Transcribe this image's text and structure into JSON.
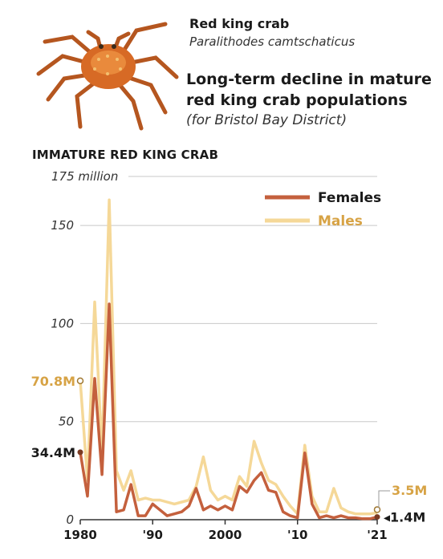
{
  "header": {
    "species_name": "Red king crab",
    "species_latin": "Paralithodes camtschaticus",
    "headline_line1": "Long-term decline in mature",
    "headline_line2": "red king crab populations",
    "subhead": "(for Bristol Bay District)"
  },
  "illustration": {
    "icon": "red-king-crab-icon"
  },
  "colors": {
    "females": "#c4603d",
    "males": "#f5d898",
    "grid": "#c8c8c8",
    "axis": "#333333",
    "male_label": "#d7a345"
  },
  "chart_data": {
    "type": "line",
    "title": "IMMATURE RED KING CRAB",
    "ylabel": "",
    "xlabel": "",
    "ylim": [
      0,
      175
    ],
    "xlim": [
      1980,
      2021
    ],
    "grid": true,
    "legend": "top-right",
    "y_ticks": [
      {
        "value": 0,
        "label": "0"
      },
      {
        "value": 50,
        "label": "50"
      },
      {
        "value": 100,
        "label": "100"
      },
      {
        "value": 150,
        "label": "150"
      },
      {
        "value": 175,
        "label": "175 million"
      }
    ],
    "x_ticks": [
      {
        "value": 1980,
        "label": "1980"
      },
      {
        "value": 1990,
        "label": "'90"
      },
      {
        "value": 2000,
        "label": "2000"
      },
      {
        "value": 2010,
        "label": "'10"
      },
      {
        "value": 2021,
        "label": "'21"
      }
    ],
    "x": [
      1980,
      1981,
      1982,
      1983,
      1984,
      1985,
      1986,
      1987,
      1988,
      1989,
      1990,
      1991,
      1992,
      1993,
      1994,
      1995,
      1996,
      1997,
      1998,
      1999,
      2000,
      2001,
      2002,
      2003,
      2004,
      2005,
      2006,
      2007,
      2008,
      2009,
      2010,
      2011,
      2012,
      2013,
      2014,
      2015,
      2016,
      2017,
      2018,
      2019,
      2020,
      2021
    ],
    "series": [
      {
        "name": "Females",
        "values": [
          34.4,
          12,
          72,
          23,
          110,
          4,
          5,
          18,
          2,
          2,
          8,
          5,
          2,
          3,
          4,
          7,
          16,
          5,
          7,
          5,
          7,
          5,
          17,
          14,
          20,
          24,
          15,
          14,
          4,
          2,
          1,
          34,
          8,
          1,
          2,
          1,
          2,
          1,
          1,
          0.5,
          0.5,
          1.4
        ]
      },
      {
        "name": "Males",
        "values": [
          70.8,
          20,
          111,
          33,
          163,
          25,
          15,
          25,
          10,
          11,
          10,
          10,
          9,
          8,
          9,
          10,
          17,
          32,
          15,
          10,
          12,
          10,
          22,
          17,
          40,
          29,
          20,
          18,
          12,
          7,
          3,
          38,
          12,
          4,
          4,
          16,
          6,
          4,
          3,
          3,
          3,
          3.5
        ]
      }
    ],
    "annotations": {
      "males_start": "70.8M",
      "females_start": "34.4M",
      "males_end": "3.5M",
      "females_end": "1.4M"
    }
  }
}
